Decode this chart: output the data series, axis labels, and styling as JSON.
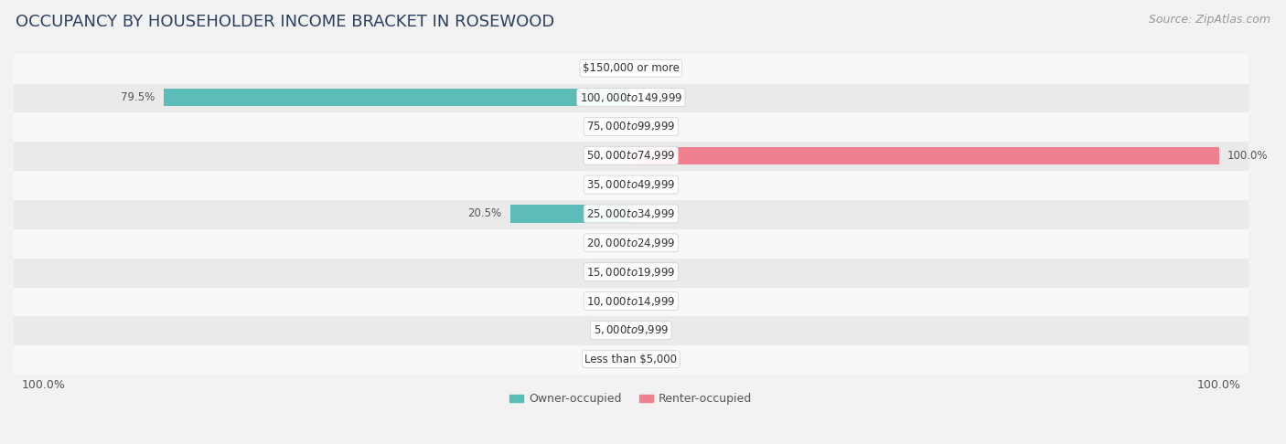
{
  "title": "OCCUPANCY BY HOUSEHOLDER INCOME BRACKET IN ROSEWOOD",
  "source": "Source: ZipAtlas.com",
  "categories": [
    "Less than $5,000",
    "$5,000 to $9,999",
    "$10,000 to $14,999",
    "$15,000 to $19,999",
    "$20,000 to $24,999",
    "$25,000 to $34,999",
    "$35,000 to $49,999",
    "$50,000 to $74,999",
    "$75,000 to $99,999",
    "$100,000 to $149,999",
    "$150,000 or more"
  ],
  "owner_values": [
    0.0,
    0.0,
    0.0,
    0.0,
    0.0,
    20.5,
    0.0,
    0.0,
    0.0,
    79.5,
    0.0
  ],
  "renter_values": [
    0.0,
    0.0,
    0.0,
    0.0,
    0.0,
    0.0,
    0.0,
    100.0,
    0.0,
    0.0,
    0.0
  ],
  "owner_color": "#5bbcb8",
  "renter_color": "#f08090",
  "owner_label": "Owner-occupied",
  "renter_label": "Renter-occupied",
  "bar_height": 0.6,
  "xlim": 100,
  "title_color": "#2d3f5f",
  "source_color": "#999999",
  "label_color": "#555555",
  "background_color": "#f2f2f2",
  "row_bg_even": "#f8f8f8",
  "row_bg_odd": "#eaeaea",
  "title_fontsize": 13,
  "source_fontsize": 9,
  "value_fontsize": 8.5,
  "category_fontsize": 8.5,
  "tick_fontsize": 9,
  "legend_fontsize": 9
}
